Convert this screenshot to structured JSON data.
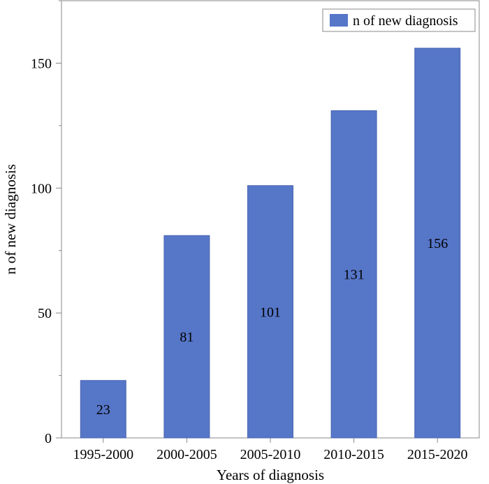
{
  "chart_data": {
    "type": "bar",
    "categories": [
      "1995-2000",
      "2000-2005",
      "2005-2010",
      "2010-2015",
      "2015-2020"
    ],
    "values": [
      23,
      81,
      101,
      131,
      156
    ],
    "data_labels": [
      "23",
      "81",
      "101",
      "131",
      "156"
    ],
    "title": "",
    "xlabel": "Years of diagnosis",
    "ylabel": "n of new diagnosis",
    "ylim": [
      0,
      175
    ],
    "yticks": [
      0,
      50,
      100,
      150
    ],
    "legend": {
      "label": "n of new diagnosis",
      "placement": "top-right"
    },
    "grid": false,
    "colors": {
      "bar": "#5676c8",
      "bar_edge": "#4a66b0"
    }
  }
}
